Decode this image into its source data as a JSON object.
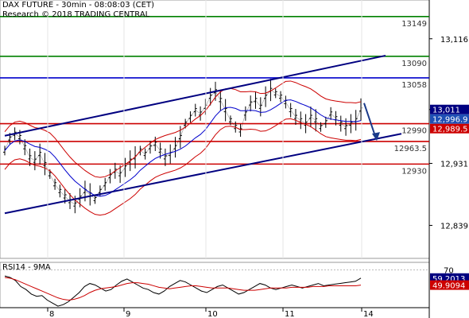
{
  "header": {
    "line1": "DAX FUTURE - 30min - 08:08:03 (CET)",
    "line2": "Research © 2018 TRADING CENTRAL"
  },
  "colors": {
    "price": "#000000",
    "bollinger": "#cc0000",
    "moving_average": "#0000cc",
    "channel": "#000080",
    "support": "#cc0000",
    "resistance_green": "#008000",
    "resistance_blue": "#0000cc",
    "arrow": "#1a3a8a",
    "rsi": "#000000",
    "rsi_ma": "#cc0000",
    "last_price_box": "#000080",
    "ma_value_box": "#1e4fb5",
    "bb_value_box": "#cc0000"
  },
  "chart_data": [
    {
      "type": "line",
      "panel": "price",
      "style": "ohlc-bars",
      "x_ticks": [
        "8",
        "9",
        "10",
        "11",
        "14"
      ],
      "y_ticks": [
        13116,
        13011,
        12931,
        12839
      ],
      "ylim": [
        12790,
        13170
      ],
      "last_price": "13,011",
      "overlay_values": [
        "12,996.9",
        "12,989.5"
      ],
      "levels": [
        {
          "value": 13149,
          "label": "13149",
          "color": "green"
        },
        {
          "value": 13090,
          "label": "13090",
          "color": "green"
        },
        {
          "value": 13058,
          "label": "13058",
          "color": "blue"
        },
        {
          "value": 12990,
          "label": "12990",
          "color": "red"
        },
        {
          "value": 12963.5,
          "label": "12963.5",
          "color": "red"
        },
        {
          "value": 12930,
          "label": "12930",
          "color": "red"
        }
      ],
      "series": [
        {
          "values": [
            12950,
            12968,
            12975,
            12970,
            12955,
            12940,
            12935,
            12945,
            12930,
            12915,
            12900,
            12890,
            12882,
            12875,
            12870,
            12880,
            12890,
            12885,
            12878,
            12890,
            12900,
            12912,
            12920,
            12915,
            12925,
            12935,
            12940,
            12950,
            12945,
            12955,
            12960,
            12950,
            12940,
            12945,
            12955,
            12970,
            12990,
            13000,
            13010,
            13005,
            13015,
            13030,
            13038,
            13025,
            13010,
            12995,
            12985,
            12980,
            13005,
            13020,
            13025,
            13015,
            13030,
            13040,
            13035,
            13030,
            13022,
            13010,
            13000,
            12995,
            12990,
            13000,
            12995,
            12985,
            12992,
            13005,
            12998,
            12990,
            12985,
            12990,
            12995,
            13011
          ]
        }
      ]
    },
    {
      "type": "line",
      "panel": "rsi",
      "title": "RSI14 - 9MA",
      "y_ticks": [
        70
      ],
      "ylim": [
        20,
        80
      ],
      "rsi_value": "59.2013",
      "ma_value": "49.9094",
      "series": [
        {
          "values": [
            62,
            60,
            56,
            48,
            44,
            38,
            35,
            36,
            30,
            26,
            22,
            24,
            28,
            34,
            40,
            48,
            52,
            50,
            46,
            42,
            44,
            50,
            55,
            58,
            54,
            50,
            46,
            44,
            40,
            38,
            42,
            48,
            52,
            56,
            54,
            50,
            46,
            42,
            40,
            44,
            48,
            50,
            46,
            42,
            38,
            40,
            44,
            48,
            52,
            50,
            46,
            44,
            46,
            48,
            50,
            48,
            46,
            48,
            50,
            52,
            49,
            50,
            51,
            52,
            53,
            54,
            55,
            59.2
          ]
        },
        {
          "values": [
            60,
            59,
            57,
            54,
            51,
            48,
            45,
            42,
            39,
            36,
            33,
            31,
            30,
            31,
            33,
            36,
            40,
            43,
            45,
            46,
            47,
            48,
            50,
            52,
            53,
            53,
            52,
            51,
            49,
            47,
            46,
            45,
            46,
            47,
            48,
            49,
            49,
            48,
            47,
            46,
            46,
            46,
            46,
            45,
            44,
            43,
            43,
            43,
            44,
            45,
            46,
            46,
            46,
            46,
            47,
            47,
            47,
            47,
            48,
            48,
            48,
            49,
            49,
            49,
            49,
            49,
            49,
            49.9
          ]
        }
      ]
    }
  ]
}
